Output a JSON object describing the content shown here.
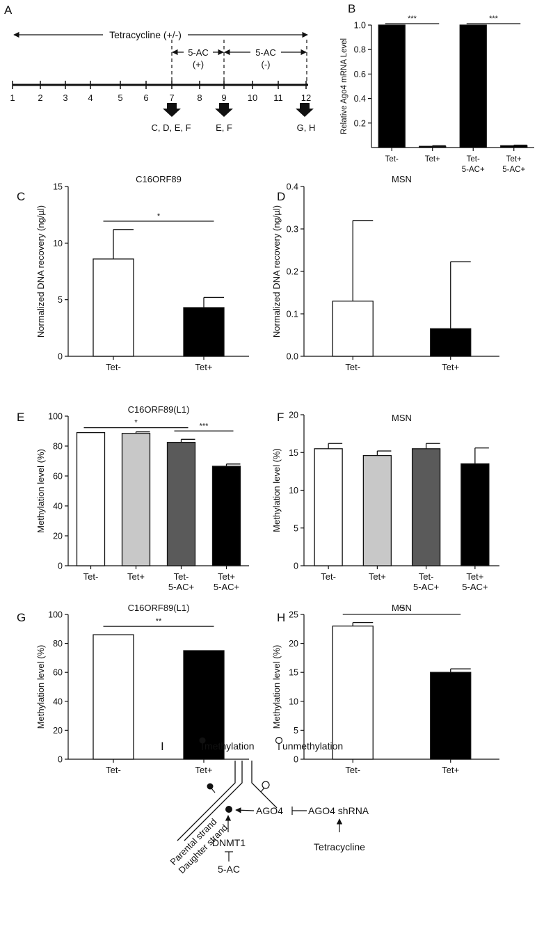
{
  "colors": {
    "white": "#ffffff",
    "lightgray": "#c8c8c8",
    "darkgray": "#5a5a5a",
    "black": "#000000",
    "ink": "#111111"
  },
  "panelA": {
    "letter": "A",
    "ticks": [
      "1",
      "2",
      "3",
      "4",
      "5",
      "6",
      "7",
      "8",
      "9",
      "10",
      "11",
      "12"
    ],
    "tetracycline_label": "Tetracycline (+/-)",
    "ac_plus_top": "5-AC",
    "ac_plus_bottom": "(+)",
    "ac_minus_top": "5-AC",
    "ac_minus_bottom": "(-)",
    "arrow_labels": [
      "C, D, E, F",
      "E, F",
      "G, H"
    ]
  },
  "panelI": {
    "letter": "I",
    "methylation": "methylation",
    "unmethylation": "unmethylation",
    "parental": "Parental strand",
    "daughter": "Daughter strand",
    "ago4": "AGO4",
    "shrna": "AGO4 shRNA",
    "tetracycline": "Tetracycline",
    "dnmt1": "DNMT1",
    "ac": "5-AC"
  },
  "chart_data": [
    {
      "id": "B",
      "letter": "B",
      "type": "bar",
      "title": "",
      "ylabel": "Relative Ago4 mRNA Level",
      "ylim": [
        0,
        1.0
      ],
      "yticks": [
        "0.2",
        "0.4",
        "0.6",
        "0.8",
        "1.0"
      ],
      "categories": [
        [
          "Tet-"
        ],
        [
          "Tet+"
        ],
        [
          "Tet-",
          "5-AC+"
        ],
        [
          "Tet+",
          "5-AC+"
        ]
      ],
      "values": [
        1.0,
        0.01,
        1.0,
        0.015
      ],
      "errors": [
        0,
        0.005,
        0,
        0.005
      ],
      "fills": [
        "black",
        "black",
        "black",
        "black"
      ],
      "significance": [
        {
          "from": 0,
          "to": 1,
          "label": "***"
        },
        {
          "from": 2,
          "to": 3,
          "label": "***"
        }
      ]
    },
    {
      "id": "C",
      "letter": "C",
      "type": "bar",
      "title": "C16ORF89",
      "ylabel": "Normalized DNA recovery (ng/µl)",
      "ylim": [
        0,
        15
      ],
      "yticks": [
        "0",
        "5",
        "10",
        "15"
      ],
      "categories": [
        [
          "Tet-"
        ],
        [
          "Tet+"
        ]
      ],
      "values": [
        8.6,
        4.3
      ],
      "errors": [
        2.6,
        0.9
      ],
      "fills": [
        "white",
        "black"
      ],
      "significance": [
        {
          "from": 0,
          "to": 1,
          "label": "*"
        }
      ]
    },
    {
      "id": "D",
      "letter": "D",
      "type": "bar",
      "title": "MSN",
      "ylabel": "Normalized DNA recovery (ng/µl)",
      "ylim": [
        0,
        0.4
      ],
      "yticks": [
        "0.0",
        "0.1",
        "0.2",
        "0.3",
        "0.4"
      ],
      "categories": [
        [
          "Tet-"
        ],
        [
          "Tet+"
        ]
      ],
      "values": [
        0.13,
        0.065
      ],
      "errors": [
        0.19,
        0.158
      ],
      "fills": [
        "white",
        "black"
      ],
      "significance": []
    },
    {
      "id": "E",
      "letter": "E",
      "type": "bar",
      "title": "C16ORF89(L1)",
      "ylabel": "Methylation level (%)",
      "ylim": [
        0,
        100
      ],
      "yticks": [
        "0",
        "20",
        "40",
        "60",
        "80",
        "100"
      ],
      "categories": [
        [
          "Tet-"
        ],
        [
          "Tet+"
        ],
        [
          "Tet-",
          "5-AC+"
        ],
        [
          "Tet+",
          "5-AC+"
        ]
      ],
      "values": [
        89,
        88.5,
        82.5,
        66.5
      ],
      "errors": [
        0,
        1,
        2,
        1.5
      ],
      "fills": [
        "white",
        "lightgray",
        "darkgray",
        "black"
      ],
      "significance": [
        {
          "from": 0,
          "to": 2,
          "label": "*"
        },
        {
          "from": 2,
          "to": 3,
          "label": "***"
        }
      ]
    },
    {
      "id": "F",
      "letter": "F",
      "type": "bar",
      "title": "MSN",
      "ylabel": "Methylation level (%)",
      "ylim": [
        0,
        20
      ],
      "yticks": [
        "0",
        "5",
        "10",
        "15",
        "20"
      ],
      "categories": [
        [
          "Tet-"
        ],
        [
          "Tet+"
        ],
        [
          "Tet-",
          "5-AC+"
        ],
        [
          "Tet+",
          "5-AC+"
        ]
      ],
      "values": [
        15.5,
        14.6,
        15.5,
        13.5
      ],
      "errors": [
        0.7,
        0.6,
        0.7,
        2.1
      ],
      "fills": [
        "white",
        "lightgray",
        "darkgray",
        "black"
      ],
      "significance": []
    },
    {
      "id": "G",
      "letter": "G",
      "type": "bar",
      "title": "C16ORF89(L1)",
      "ylabel": "Methylation level (%)",
      "ylim": [
        0,
        100
      ],
      "yticks": [
        "0",
        "20",
        "40",
        "60",
        "80",
        "100"
      ],
      "categories": [
        [
          "Tet-"
        ],
        [
          "Tet+"
        ]
      ],
      "values": [
        86,
        75
      ],
      "errors": [
        0,
        0
      ],
      "fills": [
        "white",
        "black"
      ],
      "significance": [
        {
          "from": 0,
          "to": 1,
          "label": "**"
        }
      ]
    },
    {
      "id": "H",
      "letter": "H",
      "type": "bar",
      "title": "MSN",
      "ylabel": "Methylation level (%)",
      "ylim": [
        0,
        25
      ],
      "yticks": [
        "0",
        "5",
        "10",
        "15",
        "20",
        "25"
      ],
      "categories": [
        [
          "Tet-"
        ],
        [
          "Tet+"
        ]
      ],
      "values": [
        23,
        15
      ],
      "errors": [
        0.6,
        0.6
      ],
      "fills": [
        "white",
        "black"
      ],
      "significance": [
        {
          "from": 0,
          "to": 1,
          "label": "**"
        }
      ]
    }
  ]
}
